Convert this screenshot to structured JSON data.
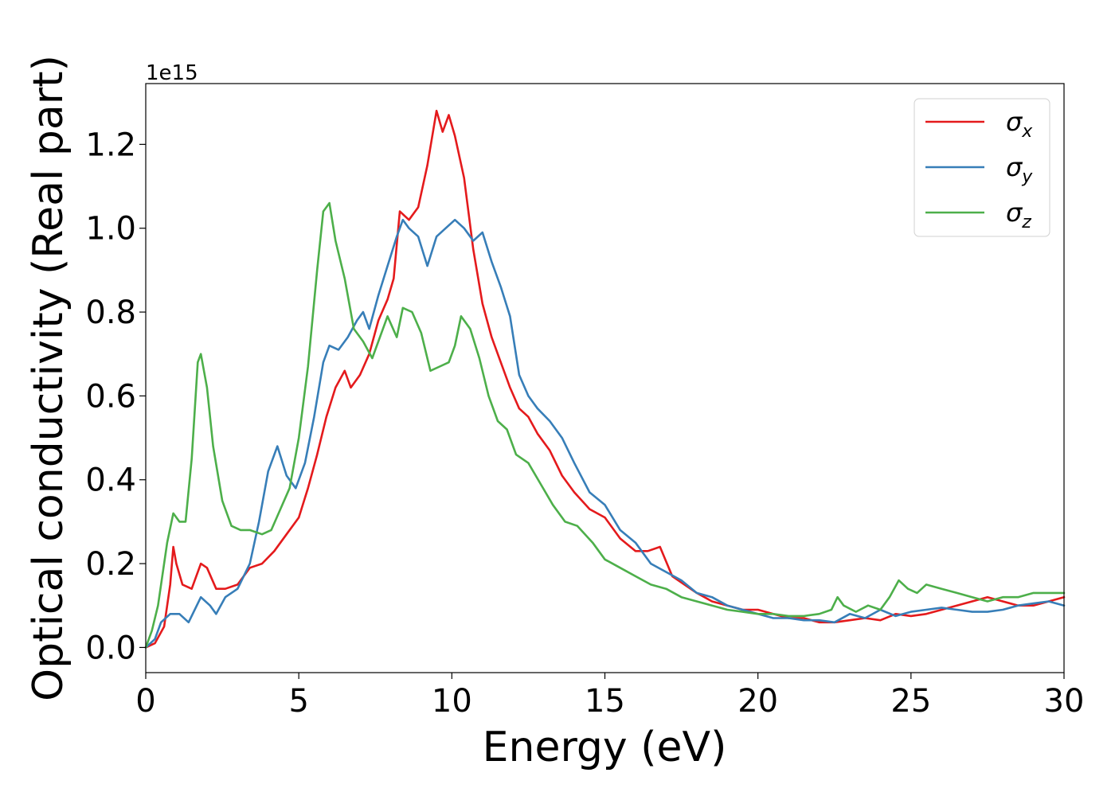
{
  "chart_data": {
    "type": "line",
    "title": "",
    "xlabel": "Energy (eV)",
    "ylabel": "Optical conductivity (Real part)",
    "y_offset_label": "1e15",
    "xlim": [
      0,
      30
    ],
    "ylim": [
      -0.06,
      1.345
    ],
    "xticks": [
      0,
      5,
      10,
      15,
      20,
      25,
      30
    ],
    "xtick_labels": [
      "0",
      "5",
      "10",
      "15",
      "20",
      "25",
      "30"
    ],
    "yticks": [
      0.0,
      0.2,
      0.4,
      0.6,
      0.8,
      1.0,
      1.2
    ],
    "ytick_labels": [
      "0.0",
      "0.2",
      "0.4",
      "0.6",
      "0.8",
      "1.0",
      "1.2"
    ],
    "grid": false,
    "legend_position": "top-right",
    "series": [
      {
        "name": "σx",
        "legend_base": "σ",
        "legend_sub": "x",
        "color": "#e41a1c",
        "x": [
          0,
          0.3,
          0.6,
          0.8,
          0.9,
          1.0,
          1.2,
          1.5,
          1.8,
          2.0,
          2.3,
          2.6,
          3.0,
          3.4,
          3.8,
          4.2,
          4.6,
          5.0,
          5.3,
          5.6,
          5.9,
          6.2,
          6.5,
          6.7,
          7.0,
          7.3,
          7.6,
          7.9,
          8.1,
          8.3,
          8.6,
          8.9,
          9.2,
          9.5,
          9.7,
          9.9,
          10.1,
          10.4,
          10.7,
          11.0,
          11.3,
          11.6,
          11.9,
          12.2,
          12.5,
          12.8,
          13.2,
          13.6,
          14.0,
          14.5,
          15.0,
          15.5,
          16.0,
          16.4,
          16.8,
          17.2,
          17.6,
          18.0,
          18.5,
          19.0,
          19.5,
          20.0,
          20.5,
          21.0,
          21.5,
          22.0,
          22.5,
          23.0,
          23.5,
          24.0,
          24.5,
          25.0,
          25.5,
          26.0,
          26.5,
          27.0,
          27.5,
          28.0,
          28.5,
          29.0,
          29.5,
          30.0
        ],
        "y": [
          0.0,
          0.01,
          0.05,
          0.15,
          0.24,
          0.2,
          0.15,
          0.14,
          0.2,
          0.19,
          0.14,
          0.14,
          0.15,
          0.19,
          0.2,
          0.23,
          0.27,
          0.31,
          0.38,
          0.46,
          0.55,
          0.62,
          0.66,
          0.62,
          0.65,
          0.7,
          0.78,
          0.83,
          0.88,
          1.04,
          1.02,
          1.05,
          1.15,
          1.28,
          1.23,
          1.27,
          1.22,
          1.12,
          0.95,
          0.82,
          0.74,
          0.68,
          0.62,
          0.57,
          0.55,
          0.51,
          0.47,
          0.41,
          0.37,
          0.33,
          0.31,
          0.26,
          0.23,
          0.23,
          0.24,
          0.17,
          0.15,
          0.13,
          0.11,
          0.1,
          0.09,
          0.09,
          0.08,
          0.07,
          0.07,
          0.06,
          0.06,
          0.065,
          0.07,
          0.065,
          0.08,
          0.075,
          0.08,
          0.09,
          0.1,
          0.11,
          0.12,
          0.11,
          0.1,
          0.1,
          0.11,
          0.12
        ]
      },
      {
        "name": "σy",
        "legend_base": "σ",
        "legend_sub": "y",
        "color": "#377eb8",
        "x": [
          0,
          0.3,
          0.5,
          0.8,
          1.1,
          1.4,
          1.8,
          2.1,
          2.3,
          2.6,
          3.0,
          3.4,
          3.7,
          4.0,
          4.3,
          4.6,
          4.9,
          5.2,
          5.5,
          5.8,
          6.0,
          6.3,
          6.6,
          6.9,
          7.1,
          7.3,
          7.6,
          7.9,
          8.2,
          8.4,
          8.6,
          8.9,
          9.2,
          9.5,
          9.8,
          10.1,
          10.4,
          10.7,
          11.0,
          11.3,
          11.6,
          11.9,
          12.2,
          12.5,
          12.8,
          13.2,
          13.6,
          14.0,
          14.5,
          15.0,
          15.5,
          16.0,
          16.5,
          17.0,
          17.5,
          18.0,
          18.5,
          19.0,
          19.5,
          20.0,
          20.5,
          21.0,
          21.5,
          22.0,
          22.5,
          23.0,
          23.5,
          24.0,
          24.5,
          25.0,
          25.5,
          26.0,
          26.5,
          27.0,
          27.5,
          28.0,
          28.5,
          29.0,
          29.5,
          30.0
        ],
        "y": [
          0.0,
          0.02,
          0.06,
          0.08,
          0.08,
          0.06,
          0.12,
          0.1,
          0.08,
          0.12,
          0.14,
          0.2,
          0.3,
          0.42,
          0.48,
          0.41,
          0.38,
          0.44,
          0.55,
          0.68,
          0.72,
          0.71,
          0.74,
          0.78,
          0.8,
          0.76,
          0.84,
          0.91,
          0.98,
          1.02,
          1.0,
          0.98,
          0.91,
          0.98,
          1.0,
          1.02,
          1.0,
          0.97,
          0.99,
          0.92,
          0.86,
          0.79,
          0.65,
          0.6,
          0.57,
          0.54,
          0.5,
          0.44,
          0.37,
          0.34,
          0.28,
          0.25,
          0.2,
          0.18,
          0.16,
          0.13,
          0.12,
          0.1,
          0.09,
          0.08,
          0.07,
          0.07,
          0.065,
          0.065,
          0.06,
          0.08,
          0.07,
          0.09,
          0.075,
          0.085,
          0.09,
          0.095,
          0.09,
          0.085,
          0.085,
          0.09,
          0.1,
          0.105,
          0.11,
          0.1
        ]
      },
      {
        "name": "σz",
        "legend_base": "σ",
        "legend_sub": "z",
        "color": "#4daf4a",
        "x": [
          0,
          0.2,
          0.4,
          0.7,
          0.9,
          1.1,
          1.3,
          1.5,
          1.7,
          1.8,
          2.0,
          2.2,
          2.5,
          2.8,
          3.1,
          3.4,
          3.8,
          4.1,
          4.4,
          4.7,
          5.0,
          5.3,
          5.6,
          5.8,
          6.0,
          6.2,
          6.5,
          6.8,
          7.1,
          7.4,
          7.7,
          7.9,
          8.2,
          8.4,
          8.7,
          9.0,
          9.3,
          9.6,
          9.9,
          10.1,
          10.3,
          10.6,
          10.9,
          11.2,
          11.5,
          11.8,
          12.1,
          12.5,
          12.9,
          13.3,
          13.7,
          14.1,
          14.6,
          15.0,
          15.5,
          16.0,
          16.5,
          17.0,
          17.5,
          18.0,
          18.5,
          19.0,
          19.5,
          20.0,
          20.5,
          21.0,
          21.5,
          22.0,
          22.4,
          22.6,
          22.8,
          23.2,
          23.6,
          24.0,
          24.3,
          24.6,
          24.9,
          25.2,
          25.5,
          26.0,
          26.5,
          27.0,
          27.5,
          28.0,
          28.5,
          29.0,
          29.5,
          30.0
        ],
        "y": [
          0.0,
          0.04,
          0.1,
          0.25,
          0.32,
          0.3,
          0.3,
          0.45,
          0.68,
          0.7,
          0.62,
          0.48,
          0.35,
          0.29,
          0.28,
          0.28,
          0.27,
          0.28,
          0.33,
          0.38,
          0.5,
          0.67,
          0.9,
          1.04,
          1.06,
          0.97,
          0.88,
          0.76,
          0.73,
          0.69,
          0.75,
          0.79,
          0.74,
          0.81,
          0.8,
          0.75,
          0.66,
          0.67,
          0.68,
          0.72,
          0.79,
          0.76,
          0.69,
          0.6,
          0.54,
          0.52,
          0.46,
          0.44,
          0.39,
          0.34,
          0.3,
          0.29,
          0.25,
          0.21,
          0.19,
          0.17,
          0.15,
          0.14,
          0.12,
          0.11,
          0.1,
          0.09,
          0.085,
          0.08,
          0.08,
          0.075,
          0.075,
          0.08,
          0.09,
          0.12,
          0.1,
          0.085,
          0.1,
          0.09,
          0.12,
          0.16,
          0.14,
          0.13,
          0.15,
          0.14,
          0.13,
          0.12,
          0.11,
          0.12,
          0.12,
          0.13,
          0.13,
          0.13
        ]
      }
    ]
  }
}
